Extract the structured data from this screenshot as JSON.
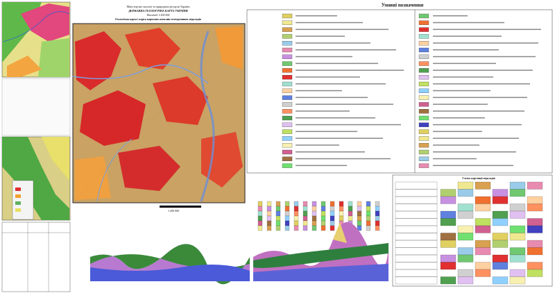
{
  "header": {
    "ministry": "Міністерство екології та природних ресурсів України",
    "title": "ДЕРЖАВНА ГЕОЛОГІЧНА КАРТА УКРАЇНИ",
    "map_title": "Геологічна карта і карта корисних копалин четвертинних відкладів",
    "scale": "Масштаб 1:200 000"
  },
  "legend": {
    "title": "Умовні позначення"
  },
  "correlation": {
    "title": "Схема кореляції відкладів"
  },
  "scale_bar": "1:200 000"
}
